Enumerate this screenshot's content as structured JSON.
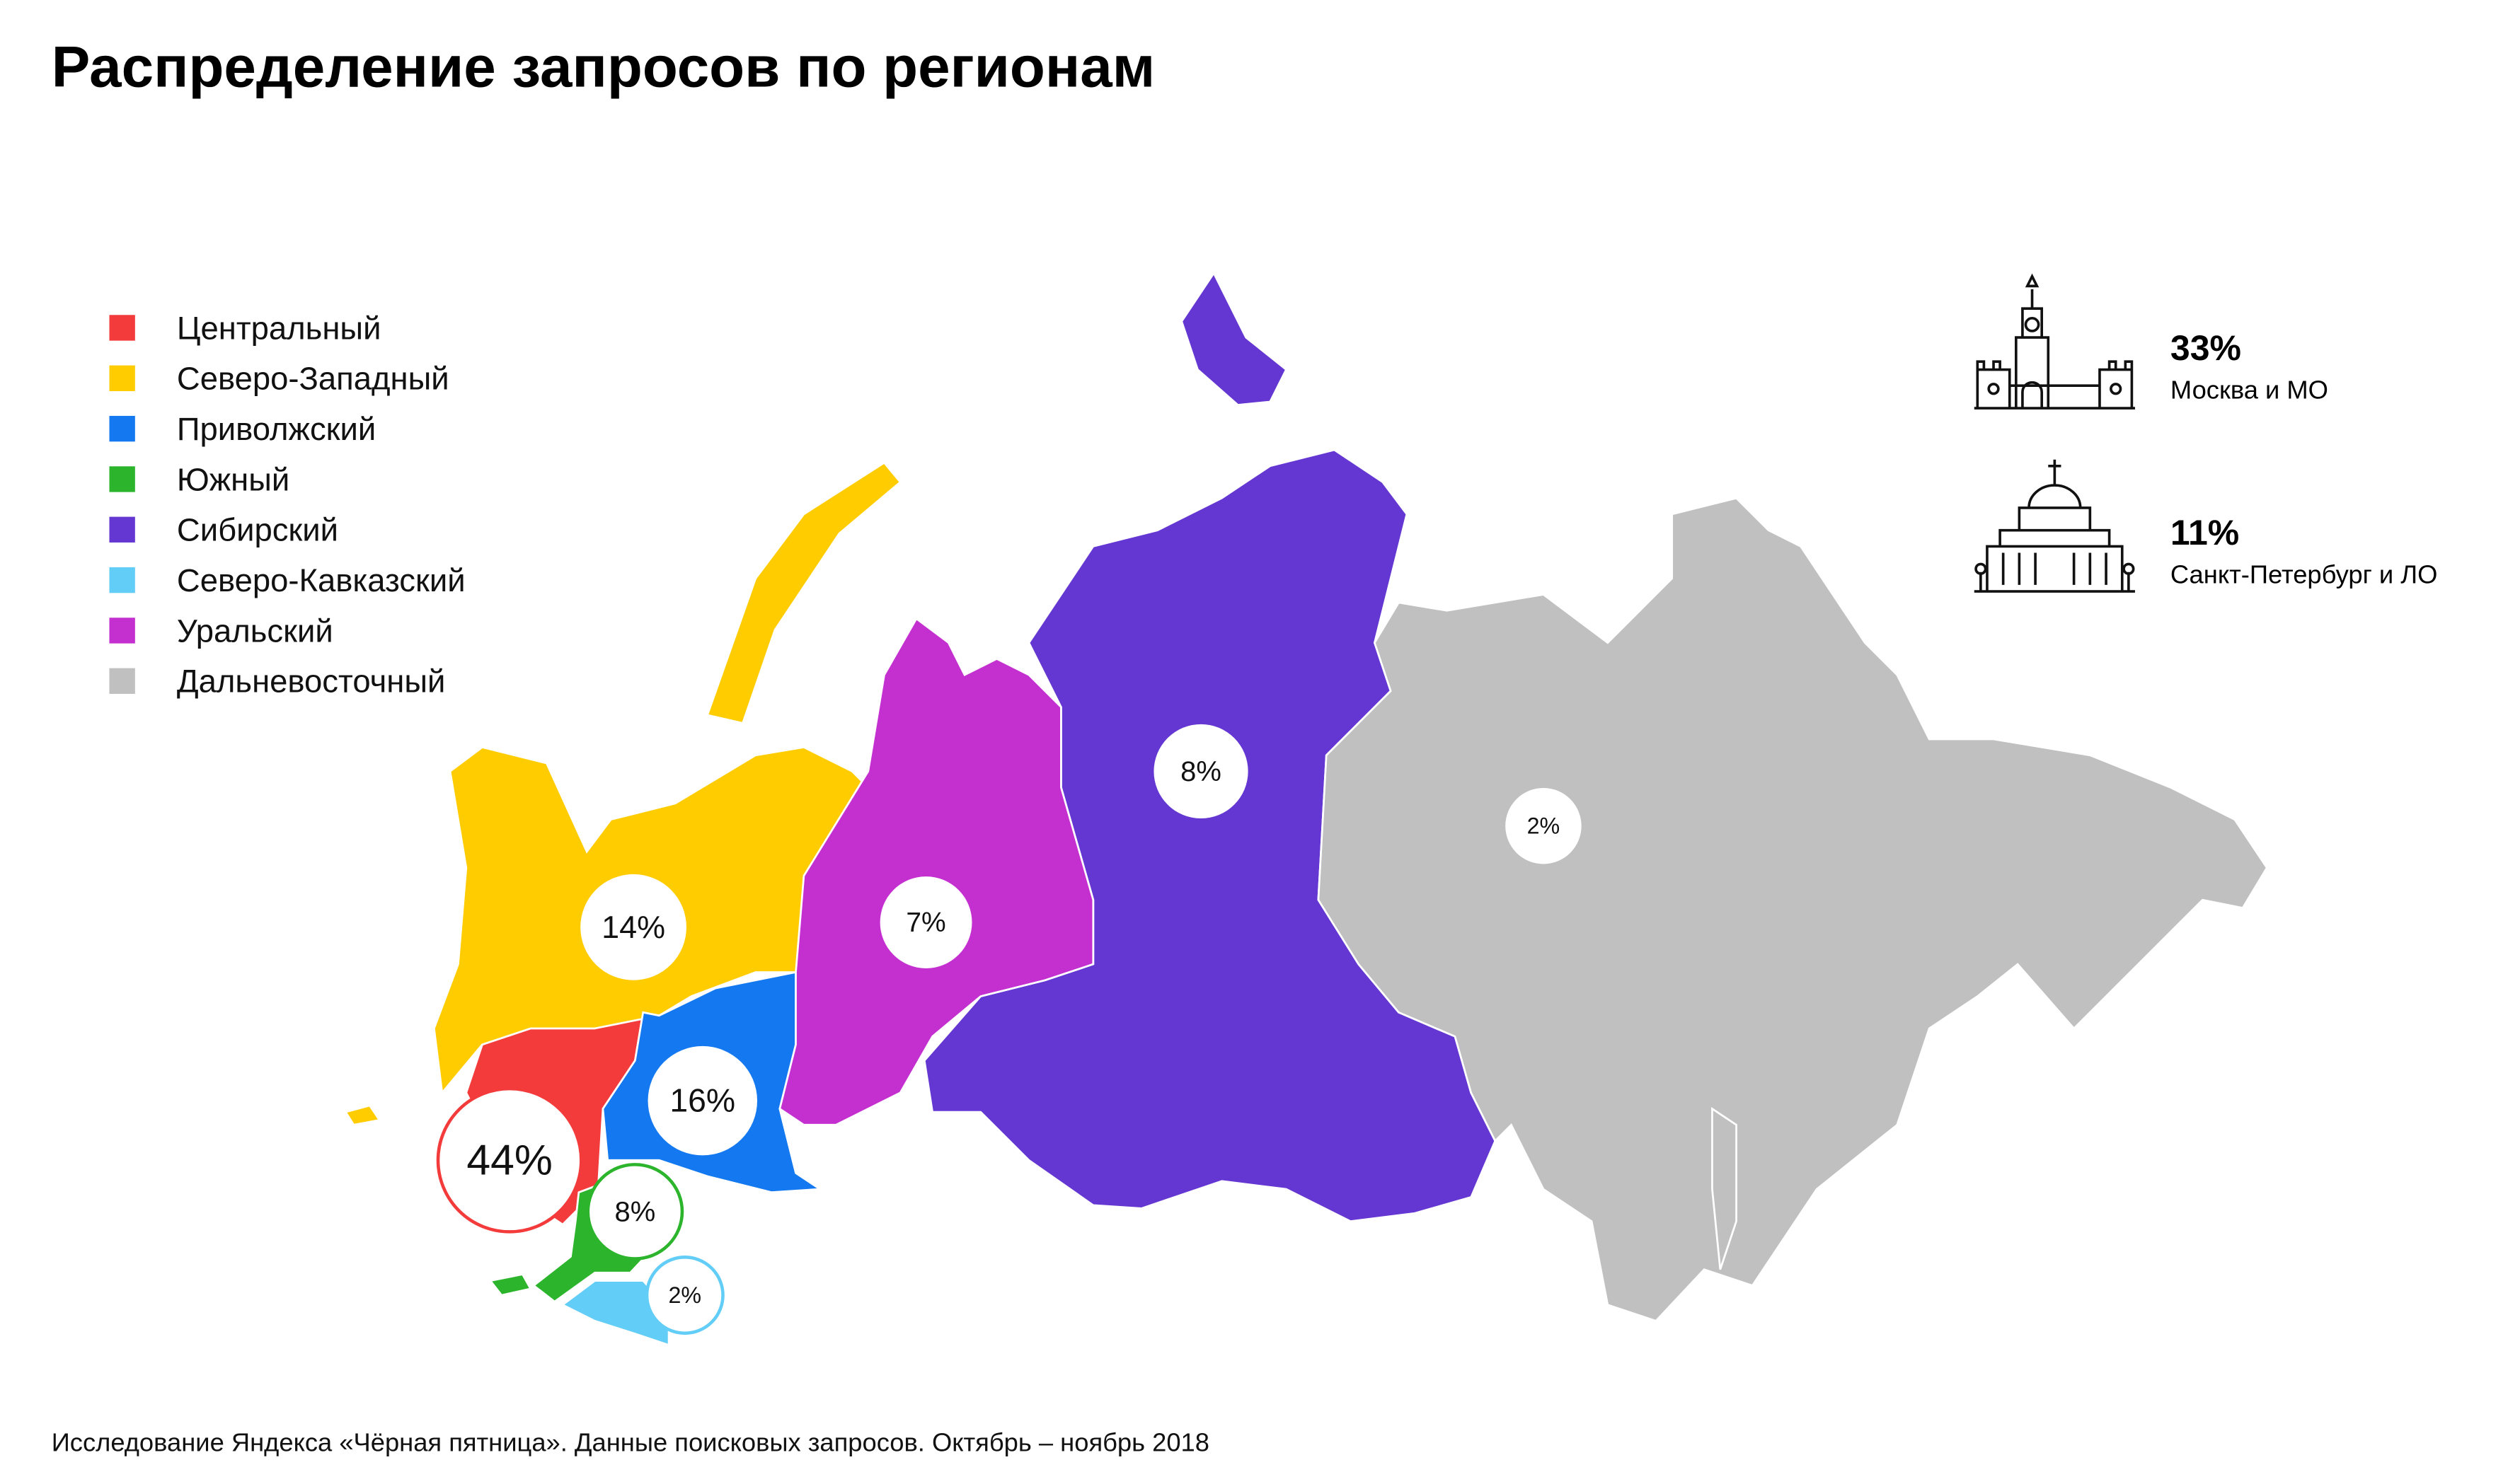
{
  "title": "Распределение запросов по регионам",
  "regions": [
    {
      "name": "Центральный",
      "color": "#f43b3b",
      "value": 44,
      "value_label": "44%"
    },
    {
      "name": "Северо-Западный",
      "color": "#ffcc00",
      "value": 14,
      "value_label": "14%"
    },
    {
      "name": "Приволжский",
      "color": "#1479f0",
      "value": 16,
      "value_label": "16%"
    },
    {
      "name": "Южный",
      "color": "#2cb52c",
      "value": 8,
      "value_label": "8%"
    },
    {
      "name": "Сибирский",
      "color": "#6437d2",
      "value": 8,
      "value_label": "8%"
    },
    {
      "name": "Северо-Кавказский",
      "color": "#62cdf6",
      "value": 2,
      "value_label": "2%"
    },
    {
      "name": "Уральский",
      "color": "#c42fd0",
      "value": 7,
      "value_label": "7%"
    },
    {
      "name": "Дальневосточный",
      "color": "#c0c0c0",
      "value": 2,
      "value_label": "2%"
    }
  ],
  "highlights": [
    {
      "value": "33%",
      "label": "Москва и МО"
    },
    {
      "value": "11%",
      "label": "Санкт-Петербург и ЛО"
    }
  ],
  "source": "Исследование Яндекса «Чёрная пятница». Данные поисковых запросов. Октябрь – ноябрь 2018"
}
